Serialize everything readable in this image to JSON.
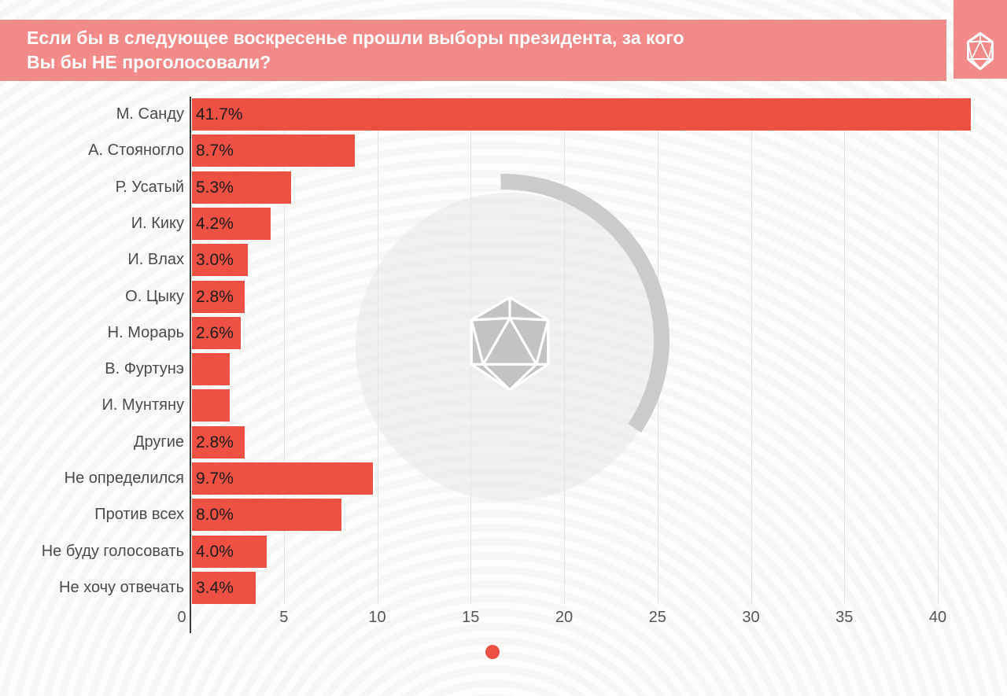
{
  "header": {
    "title_line1": "Если бы в следующее воскресенье прошли выборы президента, за кого",
    "title_line2": "Вы бы НЕ проголосовали?"
  },
  "logo": {
    "icon": "icosahedron-icon"
  },
  "watermark": {
    "icon": "icosahedron-icon"
  },
  "colors": {
    "header_bg": "#f28a8a",
    "bar": "#ef5044",
    "accent_dot": "#ef5044",
    "watermark_arc": "#cbcbcb",
    "watermark_circle": "rgba(232,231,231,0.55)",
    "watermark_icon": "#c4c3c3",
    "axis": "#3b3b3b",
    "grid": "#e3e2e2"
  },
  "chart_data": {
    "type": "bar",
    "orientation": "horizontal",
    "title": "Если бы в следующее воскресенье прошли выборы президента, за кого Вы бы НЕ проголосовали?",
    "categories": [
      "М. Санду",
      "А. Стояногло",
      "Р. Усатый",
      "И. Кику",
      "И. Влах",
      "О. Цыку",
      "Н. Морарь",
      "В. Фуртунэ",
      "И. Мунтяну",
      "Другие",
      "Не определился",
      "Против всех",
      "Не буду голосовать",
      "Не хочу отвечать"
    ],
    "values": [
      41.7,
      8.7,
      5.3,
      4.2,
      3.0,
      2.8,
      2.6,
      2.0,
      2.0,
      2.8,
      9.7,
      8.0,
      4.0,
      3.4
    ],
    "value_labels": [
      "41.7%",
      "8.7%",
      "5.3%",
      "4.2%",
      "3.0%",
      "2.8%",
      "2.6%",
      "",
      "",
      "2.8%",
      "9.7%",
      "8.0%",
      "4.0%",
      "3.4%"
    ],
    "x_ticks": [
      0,
      5,
      10,
      15,
      20,
      25,
      30,
      35,
      40
    ],
    "xlim": [
      0,
      42
    ],
    "xlabel": "",
    "ylabel": "",
    "grid": true,
    "legend": false,
    "bar_color": "#ef5044"
  },
  "footer": {
    "pagination_dots": 1
  }
}
